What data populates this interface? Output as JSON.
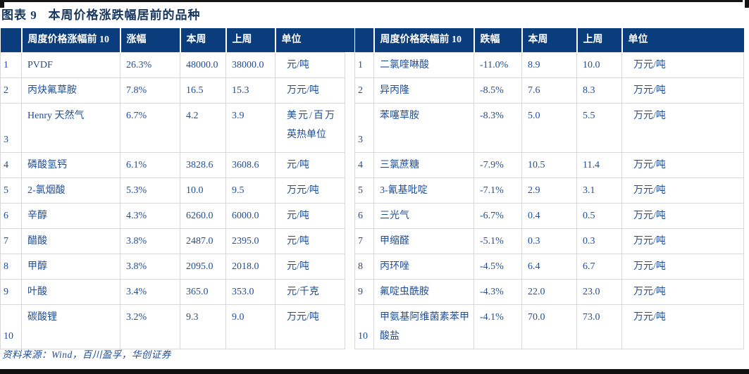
{
  "title": "图表 9   本周价格涨跌幅居前的品种",
  "source": "资料来源：Wind，百川盈孚，华创证券",
  "colors": {
    "header_bg": "#0B3C7C",
    "body_text": "#1F4E99",
    "title_text": "#17375E",
    "cell_border": "#D8D8D8",
    "rule": "#141414"
  },
  "tables": [
    {
      "id": "gainers",
      "headers": [
        "",
        "周度价格涨幅前 10",
        "涨幅",
        "本周",
        "上周",
        "单位"
      ],
      "rows": [
        [
          "1",
          "PVDF",
          "26.3%",
          "48000.0",
          "38000.0",
          "元/吨"
        ],
        [
          "2",
          "丙炔氟草胺",
          "7.8%",
          "16.5",
          "15.3",
          "万元/吨"
        ],
        [
          "3",
          "Henry 天然气",
          "6.7%",
          "4.2",
          "3.9",
          "美元/百万英热单位"
        ],
        [
          "4",
          "磷酸氢钙",
          "6.1%",
          "3828.6",
          "3608.6",
          "元/吨"
        ],
        [
          "5",
          "2-氯烟酸",
          "5.3%",
          "10.0",
          "9.5",
          "万元/吨"
        ],
        [
          "6",
          "辛醇",
          "4.3%",
          "6260.0",
          "6000.0",
          "元/吨"
        ],
        [
          "7",
          "醋酸",
          "3.8%",
          "2487.0",
          "2395.0",
          "元/吨"
        ],
        [
          "8",
          "甲醇",
          "3.8%",
          "2095.0",
          "2018.0",
          "元/吨"
        ],
        [
          "9",
          "叶酸",
          "3.4%",
          "365.0",
          "353.0",
          "元/千克"
        ],
        [
          "10",
          "碳酸锂",
          "3.2%",
          "9.3",
          "9.0",
          "万元/吨"
        ]
      ]
    },
    {
      "id": "losers",
      "headers": [
        "",
        "周度价格跌幅前 10",
        "跌幅",
        "本周",
        "上周",
        "单位"
      ],
      "rows": [
        [
          "1",
          "二氯喹啉酸",
          "-11.0%",
          "8.9",
          "10.0",
          "万元/吨"
        ],
        [
          "2",
          "异丙隆",
          "-8.5%",
          "7.6",
          "8.3",
          "万元/吨"
        ],
        [
          "3",
          "苯噻草胺",
          "-8.3%",
          "5.0",
          "5.5",
          "万元/吨"
        ],
        [
          "4",
          "三氯蔗糖",
          "-7.9%",
          "10.5",
          "11.4",
          "万元/吨"
        ],
        [
          "5",
          "3-氰基吡啶",
          "-7.1%",
          "2.9",
          "3.1",
          "万元/吨"
        ],
        [
          "6",
          "三光气",
          "-6.7%",
          "0.4",
          "0.5",
          "万元/吨"
        ],
        [
          "7",
          "甲缩醛",
          "-5.1%",
          "0.3",
          "0.3",
          "万元/吨"
        ],
        [
          "8",
          "丙环唑",
          "-4.5%",
          "6.4",
          "6.7",
          "万元/吨"
        ],
        [
          "9",
          "氟啶虫酰胺",
          "-4.3%",
          "22.0",
          "23.0",
          "万元/吨"
        ],
        [
          "10",
          "甲氨基阿维菌素苯甲酸盐",
          "-4.1%",
          "70.0",
          "73.0",
          "万元/吨"
        ]
      ]
    }
  ]
}
